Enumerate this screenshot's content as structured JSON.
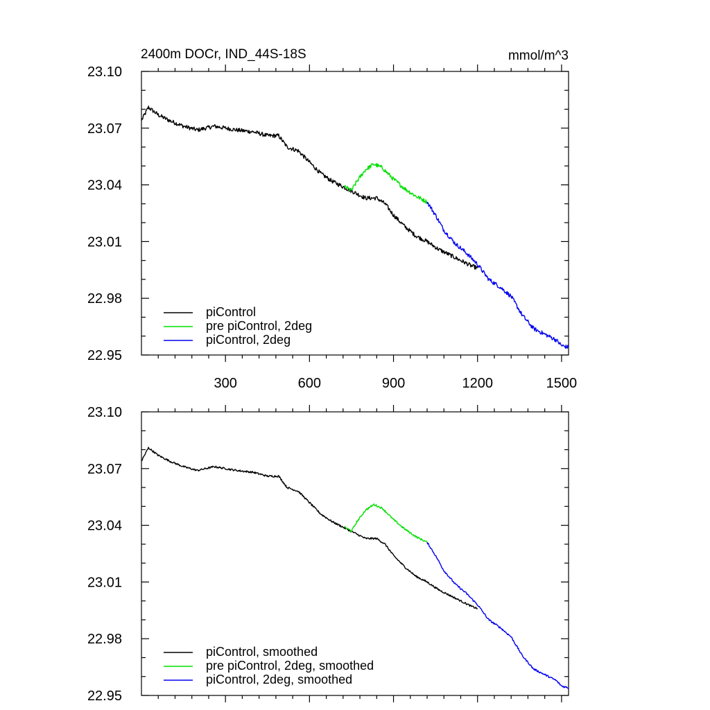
{
  "chart_data": [
    {
      "type": "line",
      "title": "2400m DOCr, IND_44S-18S",
      "units": "mmol/m^3",
      "xlabel": "",
      "ylabel": "",
      "xlim": [
        0,
        1525
      ],
      "ylim": [
        22.95,
        23.1
      ],
      "xticks": [
        300,
        600,
        900,
        1200,
        1500
      ],
      "xtick_labels": [
        "300",
        "600",
        "900",
        "1200",
        "1500"
      ],
      "yticks": [
        22.95,
        22.98,
        23.01,
        23.04,
        23.07,
        23.1
      ],
      "ytick_labels": [
        "22.95",
        "22.98",
        "23.01",
        "23.04",
        "23.07",
        "23.10"
      ],
      "legend_position": "bottom-left",
      "series": [
        {
          "name": "piControl",
          "color": "#000000",
          "noise": 0.0011,
          "x": [
            0,
            25,
            60,
            100,
            150,
            200,
            260,
            300,
            340,
            400,
            450,
            490,
            520,
            560,
            600,
            640,
            680,
            720,
            760,
            800,
            840,
            870,
            900,
            940,
            980,
            1020,
            1060,
            1100,
            1140,
            1180,
            1200
          ],
          "y": [
            23.074,
            23.081,
            23.077,
            23.074,
            23.071,
            23.069,
            23.071,
            23.07,
            23.069,
            23.068,
            23.066,
            23.066,
            23.06,
            23.058,
            23.052,
            23.046,
            23.042,
            23.039,
            23.036,
            23.033,
            23.033,
            23.03,
            23.024,
            23.018,
            23.013,
            23.01,
            23.006,
            23.003,
            23.0,
            22.997,
            22.996
          ]
        },
        {
          "name": "pre piControl, 2deg",
          "color": "#00e000",
          "noise": 0.0011,
          "x": [
            725,
            750,
            770,
            800,
            830,
            860,
            900,
            940,
            980,
            1020
          ],
          "y": [
            23.039,
            23.037,
            23.042,
            23.048,
            23.051,
            23.049,
            23.043,
            23.038,
            23.034,
            23.031
          ]
        },
        {
          "name": "piControl, 2deg",
          "color": "#0000ee",
          "noise": 0.0011,
          "x": [
            1020,
            1050,
            1080,
            1120,
            1160,
            1200,
            1240,
            1280,
            1320,
            1360,
            1400,
            1440,
            1480,
            1500,
            1525
          ],
          "y": [
            23.031,
            23.024,
            23.016,
            23.009,
            23.004,
            22.998,
            22.99,
            22.986,
            22.981,
            22.971,
            22.964,
            22.961,
            22.958,
            22.955,
            22.954
          ]
        }
      ]
    },
    {
      "type": "line",
      "title": "",
      "xlim": [
        0,
        1525
      ],
      "ylim": [
        22.95,
        23.1
      ],
      "xticks": [
        300,
        600,
        900,
        1200,
        1500
      ],
      "yticks": [
        22.95,
        22.98,
        23.01,
        23.04,
        23.07,
        23.1
      ],
      "ytick_labels": [
        "22.95",
        "22.98",
        "23.01",
        "23.04",
        "23.07",
        "23.10"
      ],
      "legend_position": "bottom-left",
      "series": [
        {
          "name": "piControl, smoothed",
          "color": "#000000",
          "noise": 0.0005,
          "x": [
            0,
            25,
            60,
            100,
            150,
            200,
            260,
            300,
            340,
            400,
            450,
            490,
            520,
            560,
            600,
            640,
            680,
            720,
            760,
            800,
            840,
            870,
            900,
            940,
            980,
            1020,
            1060,
            1100,
            1140,
            1180,
            1200
          ],
          "y": [
            23.074,
            23.081,
            23.077,
            23.074,
            23.071,
            23.069,
            23.071,
            23.07,
            23.069,
            23.068,
            23.066,
            23.066,
            23.06,
            23.058,
            23.052,
            23.046,
            23.042,
            23.039,
            23.036,
            23.033,
            23.033,
            23.03,
            23.024,
            23.018,
            23.013,
            23.01,
            23.006,
            23.003,
            23.0,
            22.997,
            22.996
          ]
        },
        {
          "name": "pre piControl, 2deg, smoothed",
          "color": "#00e000",
          "noise": 0.0005,
          "x": [
            725,
            750,
            770,
            800,
            830,
            860,
            900,
            940,
            980,
            1020
          ],
          "y": [
            23.039,
            23.037,
            23.042,
            23.048,
            23.051,
            23.049,
            23.043,
            23.038,
            23.034,
            23.031
          ]
        },
        {
          "name": "piControl, 2deg, smoothed",
          "color": "#0000ee",
          "noise": 0.0005,
          "x": [
            1020,
            1050,
            1080,
            1120,
            1160,
            1200,
            1240,
            1280,
            1320,
            1360,
            1400,
            1440,
            1480,
            1500,
            1525
          ],
          "y": [
            23.031,
            23.024,
            23.016,
            23.009,
            23.004,
            22.998,
            22.99,
            22.986,
            22.981,
            22.971,
            22.964,
            22.961,
            22.958,
            22.955,
            22.954
          ]
        }
      ]
    }
  ]
}
